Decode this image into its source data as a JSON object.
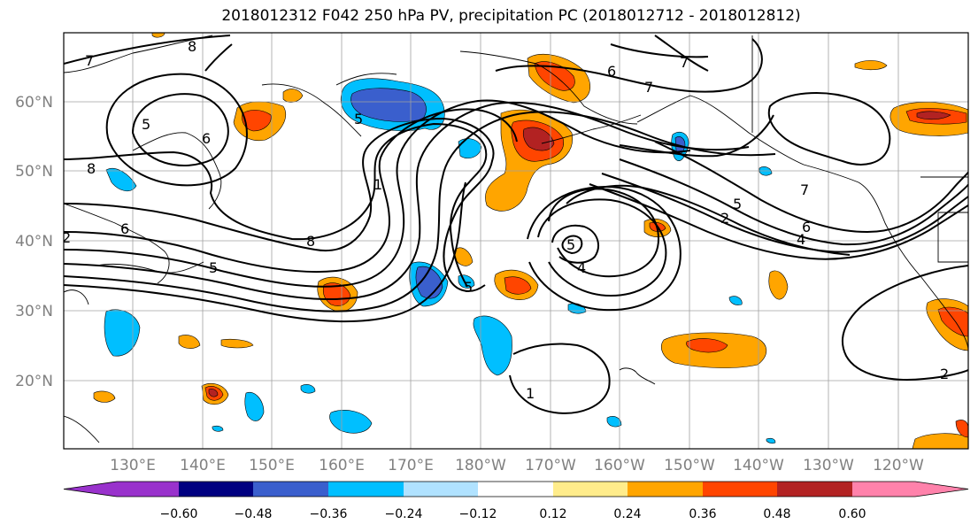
{
  "title": "2018012312 F042 250 hPa PV, precipitation PC (2018012712 - 2018012812)",
  "map": {
    "lat_labels": [
      "60°N",
      "50°N",
      "40°N",
      "30°N",
      "20°N"
    ],
    "lon_labels": [
      "130°E",
      "140°E",
      "150°E",
      "160°E",
      "170°E",
      "180°W",
      "170°W",
      "160°W",
      "150°W",
      "140°W",
      "130°W",
      "120°W"
    ],
    "contour_labels": [
      "7",
      "8",
      "5",
      "6",
      "8",
      "1",
      "6",
      "5",
      "8",
      "5",
      "7",
      "7",
      "6",
      "5",
      "2",
      "5",
      "4",
      "6",
      "7",
      "5",
      "4",
      "2",
      "1",
      "2"
    ],
    "colors": {
      "neg_060": "#9932CC",
      "neg_048": "#000080",
      "neg_036": "#3A5FCD",
      "neg_024": "#00BFFF",
      "neg_012": "#B0E2FF",
      "pos_012": "#FFEC8B",
      "pos_024": "#FFA500",
      "pos_036": "#FF4500",
      "pos_048": "#B22222",
      "pos_060": "#FF82AB"
    }
  },
  "colorbar": {
    "ticks": [
      "−0.60",
      "−0.48",
      "−0.36",
      "−0.24",
      "−0.12",
      "0.12",
      "0.24",
      "0.36",
      "0.48",
      "0.60"
    ],
    "colors": [
      "#9932CC",
      "#000080",
      "#3A5FCD",
      "#00BFFF",
      "#B0E2FF",
      "#FFFFFF",
      "#FFEC8B",
      "#FFA500",
      "#FF4500",
      "#B22222",
      "#FF82AB"
    ]
  }
}
